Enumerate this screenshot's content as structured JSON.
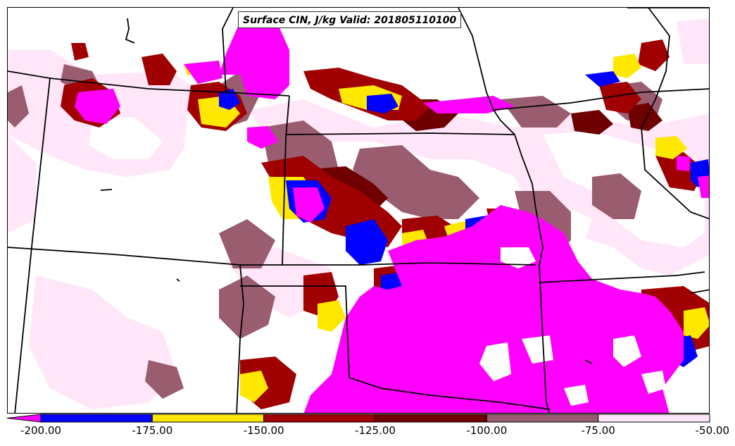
{
  "title": "Surface CIN, J/kg Valid: 201805110100",
  "legend": {
    "bins": [
      {
        "from": -200,
        "to": -175,
        "color": "#0000ff"
      },
      {
        "from": -175,
        "to": -150,
        "color": "#ffe800"
      },
      {
        "from": -150,
        "to": -125,
        "color": "#a00000"
      },
      {
        "from": -125,
        "to": -100,
        "color": "#6e0000"
      },
      {
        "from": -100,
        "to": -75,
        "color": "#9a5d6f"
      },
      {
        "from": -75,
        "to": -50,
        "color": "#ffe6f8"
      }
    ],
    "below_min_color": "#ff00ff",
    "tick_labels": [
      "-200.00",
      "-175.00",
      "-150.00",
      "-125.00",
      "-100.00",
      "-75.00",
      "-50.00"
    ]
  },
  "colors": {
    "magenta": "#ff00ff",
    "blue": "#0000ff",
    "yellow": "#ffe800",
    "red": "#a00000",
    "darkred": "#6e0000",
    "mauve": "#9a5d6f",
    "pink": "#ffe6f8",
    "white": "#ffffff",
    "border": "#000000"
  }
}
